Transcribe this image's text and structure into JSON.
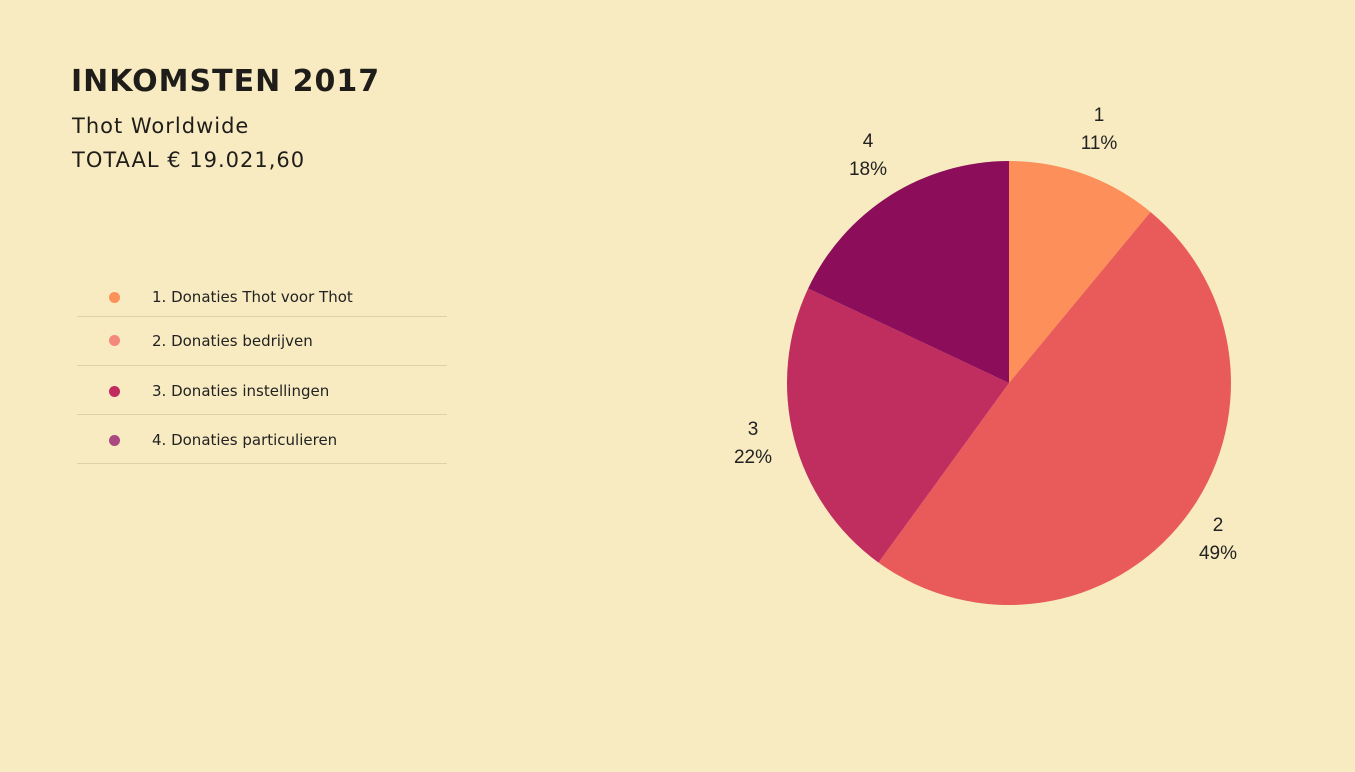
{
  "header": {
    "title": "INKOMSTEN 2017",
    "subtitle": "Thot Worldwide",
    "total": "TOTAAL € 19.021,60"
  },
  "legend": {
    "items": [
      {
        "label": "1.  Donaties Thot voor Thot",
        "color": "#fc915a"
      },
      {
        "label": "2. Donaties bedrijven",
        "color": "#f4887a"
      },
      {
        "label": "3. Donaties instellingen",
        "color": "#c22b5f"
      },
      {
        "label": "4. Donaties particulieren",
        "color": "#a9497f"
      }
    ]
  },
  "chart_data": {
    "type": "pie",
    "categories": [
      "1",
      "2",
      "3",
      "4"
    ],
    "values": [
      11,
      49,
      22,
      18
    ],
    "value_labels": [
      "11%",
      "49%",
      "22%",
      "18%"
    ],
    "colors": [
      "#fd8f5a",
      "#e85b5a",
      "#c02d5f",
      "#8c0d5a"
    ],
    "start_angle": "top",
    "direction": "clockwise"
  }
}
